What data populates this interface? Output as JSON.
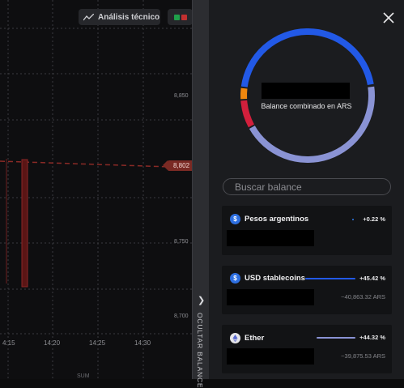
{
  "toolbar": {
    "technical_analysis_label": "Análisis técnico",
    "technical_analysis_icon": "line-chart-icon",
    "indicators_icon": "indicators-icon"
  },
  "chart": {
    "price_labels": [
      "8,850",
      "8,750",
      "8,700"
    ],
    "current_price": "8,802",
    "time_labels": [
      "4:15",
      "14:20",
      "14:25",
      "14:30"
    ],
    "bottom_label": "SUM",
    "candle_color": "#7a1e1e"
  },
  "hide_tab": {
    "label": "OCULTAR BALANCE",
    "icon": "chevron-right-icon"
  },
  "panel": {
    "close_icon": "close-icon",
    "combined_caption": "Balance combinado en ARS",
    "donut_segments": [
      {
        "asset": "USD stablecoins",
        "percent": 45.42,
        "color": "#2259e6"
      },
      {
        "asset": "Pesos argentinos",
        "percent": 0.22,
        "color": "#f0f0f0"
      },
      {
        "asset": "Ether",
        "percent": 44.32,
        "color": "#8a93d4"
      },
      {
        "asset": "other-red",
        "percent": 7.0,
        "color": "#d21f3c"
      },
      {
        "asset": "other-orange",
        "percent": 3.04,
        "color": "#f0870e"
      }
    ],
    "search_placeholder": "Buscar balance",
    "balances": [
      {
        "name": "Pesos argentinos",
        "icon": "dollar-coin-icon",
        "percent": "+0.22 %",
        "bar_color": "#2f7cf0",
        "bar_fraction": 0.05,
        "converted": ""
      },
      {
        "name": "USD stablecoins",
        "icon": "dollar-coin-icon",
        "percent": "+45.42 %",
        "bar_color": "#2259e6",
        "bar_fraction": 1.0,
        "converted": "~40,863.32 ARS"
      },
      {
        "name": "Ether",
        "icon": "ether-icon",
        "percent": "+44.32 %",
        "bar_color": "#8a93d4",
        "bar_fraction": 0.97,
        "converted": "~39,875.53 ARS"
      }
    ]
  }
}
